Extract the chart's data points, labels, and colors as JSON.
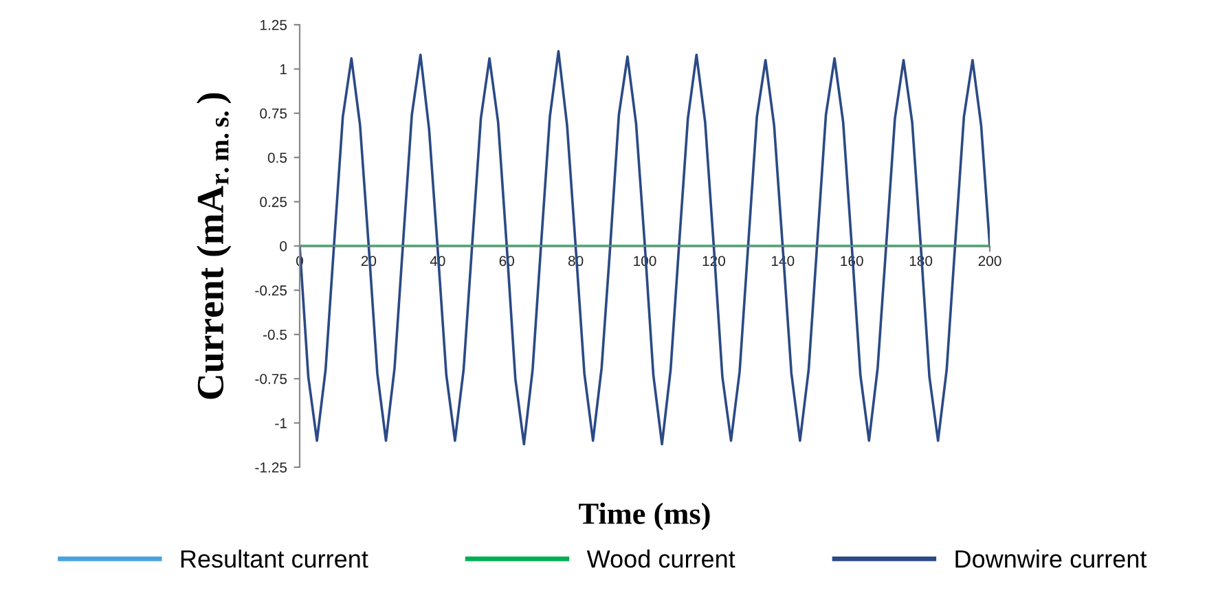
{
  "chart_data": {
    "type": "line",
    "xlabel": "Time (ms)",
    "ylabel": "Current (mA$_{r.m.s.}$)",
    "xlim": [
      0,
      200
    ],
    "ylim": [
      -1.25,
      1.25
    ],
    "xticks": [
      0,
      20,
      40,
      60,
      80,
      100,
      120,
      140,
      160,
      180,
      200
    ],
    "yticks": [
      -1.25,
      -1,
      -0.75,
      -0.5,
      -0.25,
      0,
      0.25,
      0.5,
      0.75,
      1,
      1.25
    ],
    "grid": false,
    "legend": "bottom",
    "marker": "none",
    "line_style": "solid",
    "series": [
      {
        "name": "Resultant current",
        "color": "#4aa3df"
      },
      {
        "name": "Wood current",
        "color": "#00b050",
        "x": [
          0,
          200
        ],
        "values": [
          0,
          0
        ]
      },
      {
        "name": "Downwire current",
        "color": "#2b4a86",
        "x": [
          0,
          2.5,
          5,
          7.5,
          10,
          12.5,
          15,
          17.5,
          20,
          22.5,
          25,
          27.5,
          30,
          32.5,
          35,
          37.5,
          40,
          42.5,
          45,
          47.5,
          50,
          52.5,
          55,
          57.5,
          60,
          62.5,
          65,
          67.5,
          70,
          72.5,
          75,
          77.5,
          80,
          82.5,
          85,
          87.5,
          90,
          92.5,
          95,
          97.5,
          100,
          102.5,
          105,
          107.5,
          110,
          112.5,
          115,
          117.5,
          120,
          122.5,
          125,
          127.5,
          130,
          132.5,
          135,
          137.5,
          140,
          142.5,
          145,
          147.5,
          150,
          152.5,
          155,
          157.5,
          160,
          162.5,
          165,
          167.5,
          170,
          172.5,
          175,
          177.5,
          180,
          182.5,
          185,
          187.5,
          190,
          192.5,
          195,
          197.5,
          200
        ],
        "values": [
          0,
          -0.74,
          -1.1,
          -0.7,
          0.02,
          0.73,
          1.06,
          0.68,
          0,
          -0.72,
          -1.1,
          -0.69,
          0.03,
          0.74,
          1.08,
          0.66,
          -0.02,
          -0.73,
          -1.1,
          -0.7,
          0.01,
          0.72,
          1.06,
          0.7,
          0,
          -0.75,
          -1.12,
          -0.7,
          0.02,
          0.73,
          1.1,
          0.68,
          -0.01,
          -0.72,
          -1.1,
          -0.69,
          0,
          0.74,
          1.07,
          0.69,
          0.01,
          -0.73,
          -1.12,
          -0.7,
          0.02,
          0.72,
          1.08,
          0.7,
          0,
          -0.74,
          -1.1,
          -0.71,
          0.01,
          0.73,
          1.05,
          0.68,
          -0.01,
          -0.72,
          -1.1,
          -0.7,
          0.02,
          0.74,
          1.06,
          0.7,
          0,
          -0.73,
          -1.1,
          -0.69,
          0.01,
          0.72,
          1.05,
          0.7,
          0,
          -0.74,
          -1.1,
          -0.7,
          0.02,
          0.73,
          1.05,
          0.68,
          0
        ]
      }
    ]
  }
}
